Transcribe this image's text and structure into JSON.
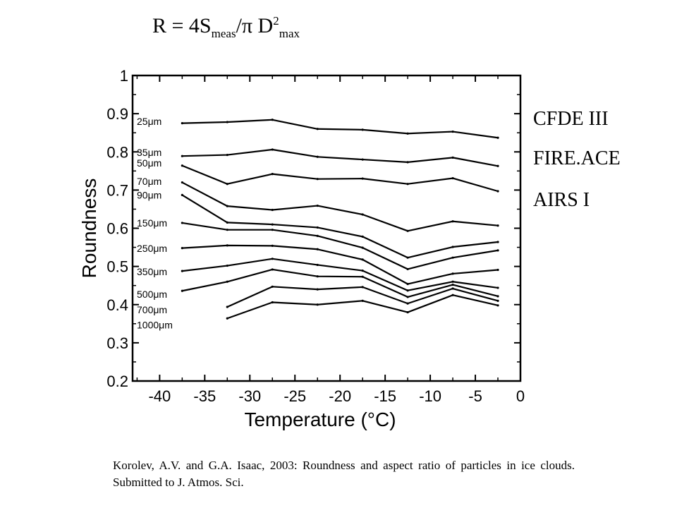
{
  "formula": {
    "lhs": "R = 4S",
    "sub1": "meas",
    "mid": "/π D",
    "sup": "2",
    "sub2": "max"
  },
  "legend": {
    "items": [
      "CFDE III",
      "FIRE.ACE",
      "AIRS I"
    ]
  },
  "citation": "Korolev, A.V. and G.A. Isaac, 2003:  Roundness and aspect ratio of particles in ice clouds.  Submitted to J. Atmos. Sci.",
  "chart_data": {
    "type": "line",
    "xlabel": "Temperature (°C)",
    "ylabel": "Roundness",
    "xlim": [
      -43,
      0
    ],
    "ylim": [
      0.2,
      1.0
    ],
    "x_ticks": [
      -40,
      -35,
      -30,
      -25,
      -20,
      -15,
      -10,
      -5,
      0
    ],
    "y_ticks": [
      0.2,
      0.3,
      0.4,
      0.5,
      0.6,
      0.7,
      0.8,
      0.9,
      1.0
    ],
    "grid": false,
    "series": [
      {
        "name": "25μm",
        "x": [
          -37.5,
          -32.5,
          -27.5,
          -22.5,
          -17.5,
          -12.5,
          -7.5,
          -2.5
        ],
        "y": [
          0.875,
          0.878,
          0.884,
          0.86,
          0.858,
          0.848,
          0.853,
          0.837
        ]
      },
      {
        "name": "35μm",
        "x": [
          -37.5,
          -32.5,
          -27.5,
          -22.5,
          -17.5,
          -12.5,
          -7.5,
          -2.5
        ],
        "y": [
          0.789,
          0.792,
          0.806,
          0.787,
          0.78,
          0.773,
          0.785,
          0.763
        ]
      },
      {
        "name": "50μm",
        "x": [
          -37.5,
          -32.5,
          -27.5,
          -22.5,
          -17.5,
          -12.5,
          -7.5,
          -2.5
        ],
        "y": [
          0.764,
          0.716,
          0.742,
          0.729,
          0.73,
          0.716,
          0.731,
          0.697
        ]
      },
      {
        "name": "70μm",
        "x": [
          -37.5,
          -32.5,
          -27.5,
          -22.5,
          -17.5,
          -12.5,
          -7.5,
          -2.5
        ],
        "y": [
          0.72,
          0.658,
          0.648,
          0.659,
          0.636,
          0.593,
          0.618,
          0.607
        ]
      },
      {
        "name": "90μm",
        "x": [
          -37.5,
          -32.5,
          -27.5,
          -22.5,
          -17.5,
          -12.5,
          -7.5,
          -2.5
        ],
        "y": [
          0.687,
          0.615,
          0.61,
          0.602,
          0.578,
          0.523,
          0.551,
          0.564
        ]
      },
      {
        "name": "150μm",
        "x": [
          -37.5,
          -32.5,
          -27.5,
          -22.5,
          -17.5,
          -12.5,
          -7.5,
          -2.5
        ],
        "y": [
          0.614,
          0.596,
          0.596,
          0.58,
          0.549,
          0.493,
          0.523,
          0.542
        ]
      },
      {
        "name": "250μm",
        "x": [
          -37.5,
          -32.5,
          -27.5,
          -22.5,
          -17.5,
          -12.5,
          -7.5,
          -2.5
        ],
        "y": [
          0.548,
          0.555,
          0.554,
          0.545,
          0.518,
          0.454,
          0.481,
          0.491
        ]
      },
      {
        "name": "350μm",
        "x": [
          -37.5,
          -32.5,
          -27.5,
          -22.5,
          -17.5,
          -12.5,
          -7.5,
          -2.5
        ],
        "y": [
          0.488,
          0.502,
          0.52,
          0.504,
          0.489,
          0.437,
          0.46,
          0.444
        ]
      },
      {
        "name": "500μm",
        "x": [
          -37.5,
          -32.5,
          -27.5,
          -22.5,
          -17.5,
          -12.5,
          -7.5,
          -2.5
        ],
        "y": [
          0.436,
          0.46,
          0.492,
          0.474,
          0.473,
          0.42,
          0.452,
          0.422
        ]
      },
      {
        "name": "700μm",
        "x": [
          -32.5,
          -27.5,
          -22.5,
          -17.5,
          -12.5,
          -7.5,
          -2.5
        ],
        "y": [
          0.394,
          0.447,
          0.44,
          0.446,
          0.403,
          0.442,
          0.41
        ]
      },
      {
        "name": "1000μm",
        "x": [
          -32.5,
          -27.5,
          -22.5,
          -17.5,
          -12.5,
          -7.5,
          -2.5
        ],
        "y": [
          0.364,
          0.406,
          0.4,
          0.41,
          0.38,
          0.425,
          0.398
        ]
      }
    ],
    "label_positions_y": [
      0.88,
      0.799,
      0.771,
      0.723,
      0.687,
      0.614,
      0.547,
      0.486,
      0.427,
      0.387,
      0.347
    ]
  }
}
